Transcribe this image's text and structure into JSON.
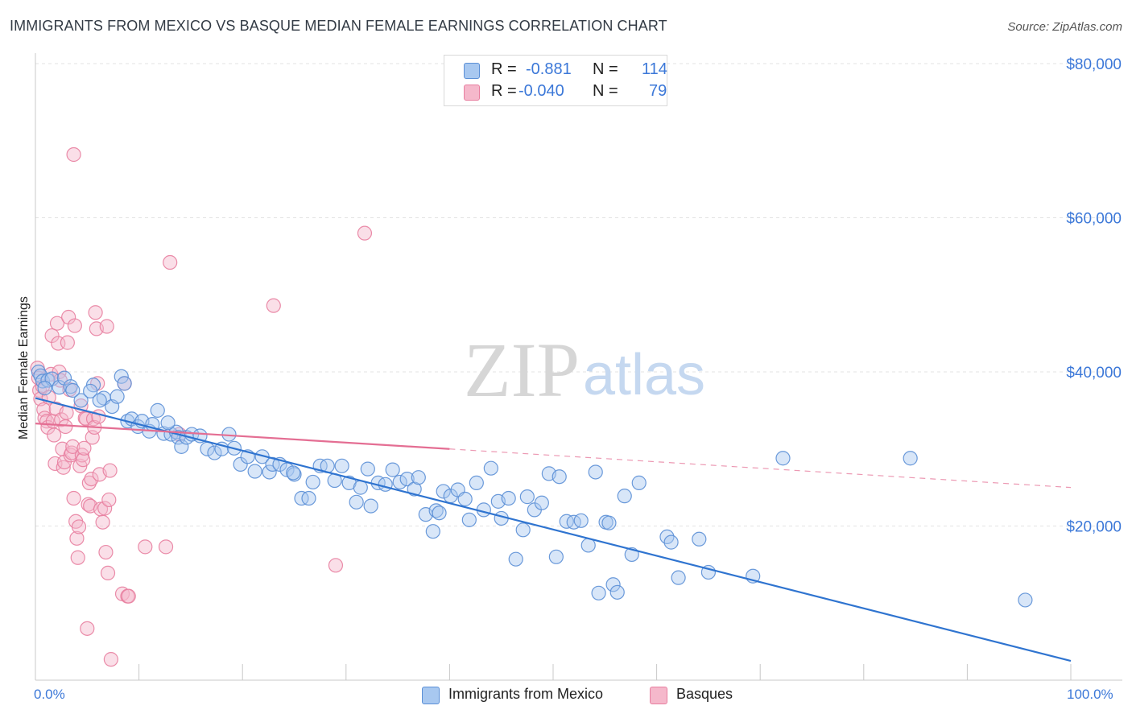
{
  "header": {
    "title": "IMMIGRANTS FROM MEXICO VS BASQUE MEDIAN FEMALE EARNINGS CORRELATION CHART",
    "source_prefix": "Source: ",
    "source_name": "ZipAtlas.com"
  },
  "watermark": {
    "zip": "ZIP",
    "atlas": "atlas"
  },
  "legend": {
    "rows": [
      {
        "r_label": "R =",
        "r_value": "-0.881",
        "n_label": "N =",
        "n_value": "114"
      },
      {
        "r_label": "R =",
        "r_value": "-0.040",
        "n_label": "N =",
        "n_value": "79"
      }
    ]
  },
  "bottom_legend": {
    "series_a": "Immigrants from Mexico",
    "series_b": "Basques"
  },
  "colors": {
    "series_a_fill": "#a8c8f0",
    "series_a_stroke": "#5b8fd6",
    "series_a_line": "#2f74d0",
    "series_b_fill": "#f5b8cb",
    "series_b_stroke": "#e87fa0",
    "series_b_line": "#e46e93",
    "tick_label": "#3c78d8"
  },
  "chart_data": {
    "type": "scatter",
    "title": "IMMIGRANTS FROM MEXICO VS BASQUE MEDIAN FEMALE EARNINGS CORRELATION CHART",
    "xlabel": "",
    "ylabel": "Median Female Earnings",
    "xlim": [
      0,
      100
    ],
    "ylim": [
      0,
      80000
    ],
    "x_tick_labels": [
      "0.0%",
      "100.0%"
    ],
    "y_ticks": [
      20000,
      40000,
      60000,
      80000
    ],
    "y_tick_labels": [
      "$20,000",
      "$40,000",
      "$60,000",
      "$80,000"
    ],
    "grid": true,
    "legend_placement": "top-center",
    "series": [
      {
        "name": "Immigrants from Mexico",
        "r": -0.881,
        "n": 114,
        "trend": {
          "x": [
            0,
            100
          ],
          "y": [
            36600,
            2500
          ]
        },
        "points": [
          [
            0.3,
            40000
          ],
          [
            0.5,
            39500
          ],
          [
            0.7,
            38800
          ],
          [
            1.2,
            38900
          ],
          [
            1.6,
            39100
          ],
          [
            2.3,
            38000
          ],
          [
            2.8,
            39200
          ],
          [
            3.4,
            38100
          ],
          [
            4.4,
            36300
          ],
          [
            5.6,
            38300
          ],
          [
            5.3,
            37500
          ],
          [
            6.6,
            36600
          ],
          [
            6.2,
            36300
          ],
          [
            7.4,
            35500
          ],
          [
            7.9,
            36800
          ],
          [
            8.3,
            39400
          ],
          [
            8.6,
            38500
          ],
          [
            8.9,
            33600
          ],
          [
            9.3,
            33900
          ],
          [
            9.9,
            32900
          ],
          [
            10.3,
            33600
          ],
          [
            11.0,
            32300
          ],
          [
            11.3,
            33200
          ],
          [
            11.8,
            35000
          ],
          [
            12.4,
            32000
          ],
          [
            13.1,
            31900
          ],
          [
            13.6,
            32200
          ],
          [
            13.8,
            31500
          ],
          [
            14.1,
            30300
          ],
          [
            14.6,
            31500
          ],
          [
            15.1,
            31900
          ],
          [
            15.9,
            31700
          ],
          [
            16.6,
            30000
          ],
          [
            17.3,
            29500
          ],
          [
            18.0,
            30000
          ],
          [
            18.7,
            31900
          ],
          [
            19.2,
            30100
          ],
          [
            19.8,
            28000
          ],
          [
            20.5,
            29000
          ],
          [
            21.2,
            27100
          ],
          [
            21.9,
            29000
          ],
          [
            22.6,
            27000
          ],
          [
            22.9,
            28000
          ],
          [
            23.6,
            28000
          ],
          [
            24.3,
            27300
          ],
          [
            25.0,
            26700
          ],
          [
            25.7,
            23600
          ],
          [
            26.4,
            23600
          ],
          [
            26.8,
            25700
          ],
          [
            27.5,
            27800
          ],
          [
            28.2,
            27800
          ],
          [
            28.9,
            25900
          ],
          [
            29.6,
            27800
          ],
          [
            30.3,
            25600
          ],
          [
            31.0,
            23100
          ],
          [
            31.4,
            25000
          ],
          [
            32.1,
            27400
          ],
          [
            32.4,
            22600
          ],
          [
            33.1,
            25600
          ],
          [
            33.8,
            25400
          ],
          [
            34.5,
            27300
          ],
          [
            35.2,
            25700
          ],
          [
            35.9,
            26100
          ],
          [
            36.6,
            24800
          ],
          [
            37.0,
            26300
          ],
          [
            37.7,
            21500
          ],
          [
            38.4,
            19300
          ],
          [
            38.7,
            22000
          ],
          [
            39.4,
            24500
          ],
          [
            40.1,
            23900
          ],
          [
            40.8,
            24700
          ],
          [
            41.5,
            23500
          ],
          [
            41.9,
            20800
          ],
          [
            42.6,
            25600
          ],
          [
            43.3,
            22100
          ],
          [
            44.0,
            27500
          ],
          [
            44.7,
            23200
          ],
          [
            45.0,
            21000
          ],
          [
            45.7,
            23600
          ],
          [
            46.4,
            15700
          ],
          [
            47.1,
            19500
          ],
          [
            47.5,
            23800
          ],
          [
            48.2,
            22100
          ],
          [
            48.9,
            23000
          ],
          [
            49.6,
            26800
          ],
          [
            50.3,
            16000
          ],
          [
            50.6,
            26400
          ],
          [
            51.3,
            20600
          ],
          [
            52.0,
            20500
          ],
          [
            52.7,
            20700
          ],
          [
            53.4,
            17500
          ],
          [
            54.1,
            27000
          ],
          [
            54.4,
            11300
          ],
          [
            55.1,
            20500
          ],
          [
            55.8,
            12400
          ],
          [
            56.2,
            11400
          ],
          [
            56.9,
            23900
          ],
          [
            57.6,
            16300
          ],
          [
            58.3,
            25600
          ],
          [
            61.0,
            18600
          ],
          [
            61.4,
            17900
          ],
          [
            62.1,
            13300
          ],
          [
            64.1,
            18300
          ],
          [
            65.0,
            14000
          ],
          [
            69.3,
            13500
          ],
          [
            72.2,
            28800
          ],
          [
            84.5,
            28800
          ],
          [
            95.6,
            10400
          ],
          [
            0.9,
            37900
          ],
          [
            3.6,
            37600
          ],
          [
            12.8,
            33400
          ],
          [
            24.9,
            26900
          ],
          [
            39.0,
            21700
          ],
          [
            55.4,
            20400
          ]
        ]
      },
      {
        "name": "Basques",
        "r": -0.04,
        "n": 79,
        "trend": {
          "x": [
            0,
            40
          ],
          "y": [
            33300,
            30000
          ],
          "dashed_x": [
            40,
            100
          ],
          "dashed_y": [
            30000,
            25000
          ]
        },
        "points": [
          [
            0.2,
            40500
          ],
          [
            0.3,
            39200
          ],
          [
            0.4,
            37600
          ],
          [
            0.5,
            36500
          ],
          [
            0.7,
            38100
          ],
          [
            0.8,
            35100
          ],
          [
            0.9,
            34000
          ],
          [
            1.1,
            33600
          ],
          [
            1.2,
            32800
          ],
          [
            1.3,
            36700
          ],
          [
            1.5,
            39700
          ],
          [
            1.6,
            44700
          ],
          [
            1.7,
            33600
          ],
          [
            1.8,
            31800
          ],
          [
            1.9,
            28100
          ],
          [
            2.0,
            35200
          ],
          [
            2.1,
            46300
          ],
          [
            2.2,
            43700
          ],
          [
            2.3,
            40000
          ],
          [
            2.4,
            38900
          ],
          [
            2.5,
            33800
          ],
          [
            2.6,
            30000
          ],
          [
            2.7,
            27600
          ],
          [
            2.8,
            28300
          ],
          [
            2.9,
            32900
          ],
          [
            3.0,
            34700
          ],
          [
            3.1,
            43800
          ],
          [
            3.2,
            47100
          ],
          [
            3.3,
            37700
          ],
          [
            3.4,
            29200
          ],
          [
            3.5,
            29500
          ],
          [
            3.6,
            30300
          ],
          [
            3.7,
            23600
          ],
          [
            3.8,
            46000
          ],
          [
            3.9,
            20600
          ],
          [
            4.0,
            18400
          ],
          [
            4.1,
            15900
          ],
          [
            4.2,
            19900
          ],
          [
            4.3,
            27800
          ],
          [
            4.4,
            35600
          ],
          [
            4.5,
            29200
          ],
          [
            4.6,
            28600
          ],
          [
            4.7,
            30100
          ],
          [
            4.8,
            34000
          ],
          [
            4.9,
            33900
          ],
          [
            5.0,
            6700
          ],
          [
            5.1,
            22800
          ],
          [
            5.2,
            25600
          ],
          [
            5.3,
            22600
          ],
          [
            5.4,
            26100
          ],
          [
            5.5,
            31500
          ],
          [
            5.6,
            33900
          ],
          [
            5.7,
            32800
          ],
          [
            5.8,
            47700
          ],
          [
            5.9,
            45600
          ],
          [
            6.0,
            38500
          ],
          [
            6.1,
            34200
          ],
          [
            6.2,
            26700
          ],
          [
            6.3,
            22200
          ],
          [
            6.5,
            20500
          ],
          [
            6.7,
            22300
          ],
          [
            6.8,
            16600
          ],
          [
            6.9,
            45900
          ],
          [
            7.0,
            13900
          ],
          [
            7.1,
            23400
          ],
          [
            7.2,
            27200
          ],
          [
            7.3,
            2700
          ],
          [
            8.4,
            11200
          ],
          [
            8.6,
            38500
          ],
          [
            8.9,
            10900
          ],
          [
            9.0,
            10900
          ],
          [
            10.6,
            17300
          ],
          [
            12.6,
            17300
          ],
          [
            13.0,
            54200
          ],
          [
            13.9,
            31900
          ],
          [
            23.0,
            48600
          ],
          [
            29.0,
            14900
          ],
          [
            31.8,
            58000
          ],
          [
            3.7,
            68200
          ]
        ]
      }
    ]
  }
}
